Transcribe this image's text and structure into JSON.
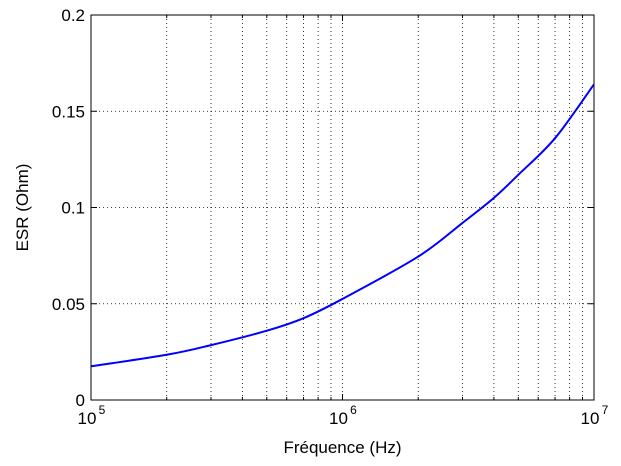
{
  "chart_data": {
    "type": "line",
    "title": "",
    "xlabel": "Fréquence (Hz)",
    "ylabel": "ESR (Ohm)",
    "x_scale": "log",
    "xlim": [
      100000,
      10000000
    ],
    "ylim": [
      0,
      0.2
    ],
    "grid": true,
    "x_ticks": [
      {
        "base": "10",
        "exp": "5",
        "value": 100000
      },
      {
        "base": "10",
        "exp": "6",
        "value": 1000000
      },
      {
        "base": "10",
        "exp": "7",
        "value": 10000000
      }
    ],
    "y_ticks": [
      {
        "label": "0",
        "value": 0
      },
      {
        "label": "0.05",
        "value": 0.05
      },
      {
        "label": "0.1",
        "value": 0.1
      },
      {
        "label": "0.15",
        "value": 0.15
      },
      {
        "label": "0.2",
        "value": 0.2
      }
    ],
    "series": [
      {
        "color": "#0000ff",
        "x": [
          100000,
          200000,
          300000,
          500000,
          700000,
          1000000,
          2000000,
          3000000,
          4000000,
          5000000,
          7000000,
          10000000
        ],
        "y": [
          0.0175,
          0.0235,
          0.0285,
          0.036,
          0.0425,
          0.0525,
          0.0745,
          0.092,
          0.105,
          0.117,
          0.136,
          0.164
        ]
      }
    ]
  }
}
